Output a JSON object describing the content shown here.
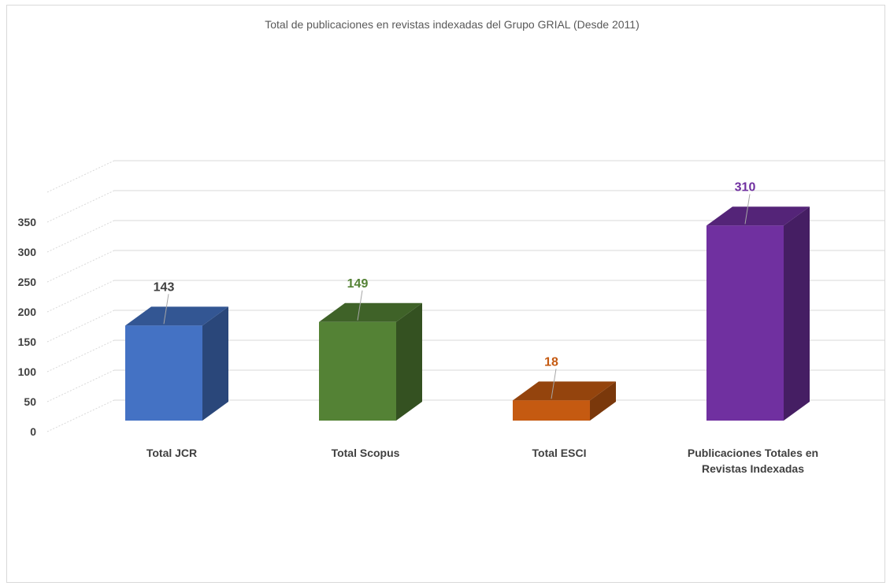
{
  "chart_data": {
    "type": "bar",
    "title": "Total de publicaciones  en revistas indexadas del Grupo GRIAL (Desde 2011)",
    "xlabel": "",
    "ylabel": "",
    "ylim": [
      0,
      350
    ],
    "yticks": [
      0,
      50,
      100,
      150,
      200,
      250,
      300,
      350
    ],
    "grid": true,
    "legend": "none",
    "style": "3d-column",
    "categories": [
      [
        "Total JCR"
      ],
      [
        "Total Scopus"
      ],
      [
        "Total ESCI"
      ],
      [
        "Publicaciones Totales en",
        "Revistas Indexadas"
      ]
    ],
    "values": [
      143,
      149,
      18,
      310
    ],
    "colors": [
      "#4472c4",
      "#548235",
      "#c55a11",
      "#7030a0"
    ],
    "label_colors": [
      "#404040",
      "#548235",
      "#c55a11",
      "#7030a0"
    ]
  }
}
